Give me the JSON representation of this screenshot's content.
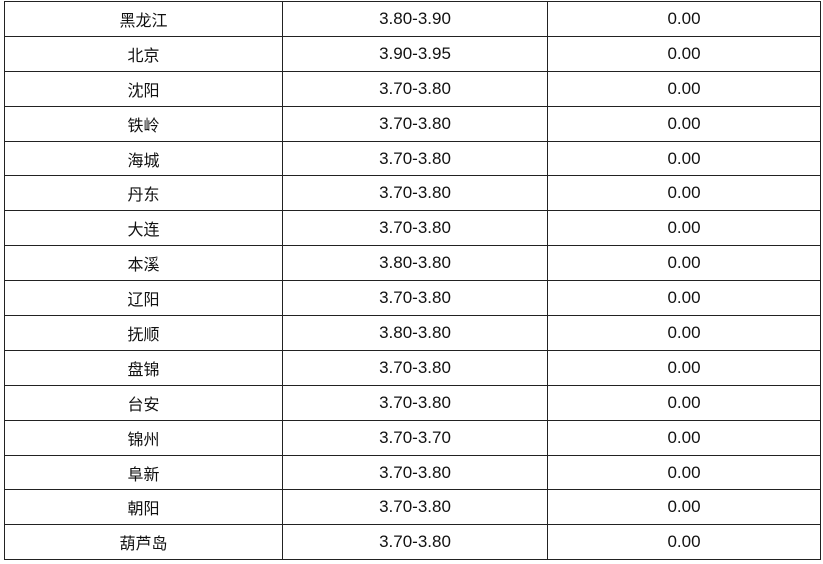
{
  "table": {
    "rows": [
      {
        "region": "黑龙江",
        "price_range": "3.80-3.90",
        "change": "0.00"
      },
      {
        "region": "北京",
        "price_range": "3.90-3.95",
        "change": "0.00"
      },
      {
        "region": "沈阳",
        "price_range": "3.70-3.80",
        "change": "0.00"
      },
      {
        "region": "铁岭",
        "price_range": "3.70-3.80",
        "change": "0.00"
      },
      {
        "region": "海城",
        "price_range": "3.70-3.80",
        "change": "0.00"
      },
      {
        "region": "丹东",
        "price_range": "3.70-3.80",
        "change": "0.00"
      },
      {
        "region": "大连",
        "price_range": "3.70-3.80",
        "change": "0.00"
      },
      {
        "region": "本溪",
        "price_range": "3.80-3.80",
        "change": "0.00"
      },
      {
        "region": "辽阳",
        "price_range": "3.70-3.80",
        "change": "0.00"
      },
      {
        "region": "抚顺",
        "price_range": "3.80-3.80",
        "change": "0.00"
      },
      {
        "region": "盘锦",
        "price_range": "3.70-3.80",
        "change": "0.00"
      },
      {
        "region": "台安",
        "price_range": "3.70-3.80",
        "change": "0.00"
      },
      {
        "region": "锦州",
        "price_range": "3.70-3.70",
        "change": "0.00"
      },
      {
        "region": "阜新",
        "price_range": "3.70-3.80",
        "change": "0.00"
      },
      {
        "region": "朝阳",
        "price_range": "3.70-3.80",
        "change": "0.00"
      },
      {
        "region": "葫芦岛",
        "price_range": "3.70-3.80",
        "change": "0.00"
      }
    ]
  }
}
